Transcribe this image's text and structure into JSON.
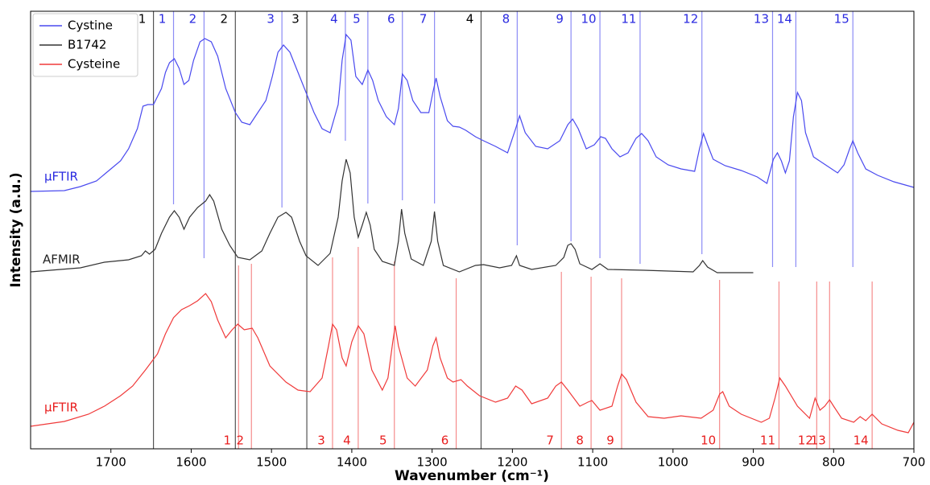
{
  "chart_data": {
    "type": "line",
    "xlabel": "Wavenumber (cm⁻¹)",
    "ylabel": "Intensity (a.u.)",
    "xlim": [
      1800,
      700
    ],
    "ylim": [
      0,
      544
    ],
    "xticks": [
      1700,
      1600,
      1500,
      1400,
      1300,
      1200,
      1100,
      1000,
      900,
      800,
      700
    ],
    "legend": "upper left",
    "series": [
      {
        "name": "Cystine",
        "color": "#4a4aef",
        "x": [
          1800,
          1758,
          1738,
          1718,
          1700,
          1688,
          1678,
          1667,
          1660,
          1654,
          1647,
          1637,
          1632,
          1627,
          1621,
          1615,
          1609,
          1603,
          1597,
          1589,
          1583,
          1575,
          1567,
          1557,
          1545,
          1537,
          1527,
          1517,
          1507,
          1499,
          1492,
          1485,
          1477,
          1467,
          1457,
          1447,
          1437,
          1427,
          1417,
          1412,
          1407,
          1401,
          1395,
          1387,
          1380,
          1374,
          1367,
          1357,
          1347,
          1342,
          1337,
          1331,
          1324,
          1314,
          1304,
          1299,
          1295,
          1290,
          1281,
          1274,
          1266,
          1258,
          1246,
          1236,
          1221,
          1206,
          1196,
          1191,
          1184,
          1171,
          1156,
          1141,
          1131,
          1125,
          1118,
          1108,
          1098,
          1090,
          1084,
          1076,
          1066,
          1056,
          1046,
          1039,
          1031,
          1021,
          1006,
          990,
          973,
          967,
          962,
          957,
          950,
          935,
          915,
          895,
          883,
          875,
          870,
          865,
          860,
          855,
          850,
          845,
          840,
          835,
          825,
          810,
          795,
          787,
          780,
          776,
          770,
          760,
          745,
          725,
          700
        ],
        "values": [
          320,
          321,
          326,
          333,
          348,
          358,
          373,
          398,
          426,
          428,
          428,
          448,
          468,
          480,
          485,
          473,
          453,
          458,
          483,
          506,
          510,
          506,
          488,
          448,
          418,
          406,
          403,
          418,
          433,
          463,
          493,
          502,
          493,
          468,
          443,
          418,
          398,
          393,
          428,
          483,
          515,
          508,
          463,
          453,
          471,
          458,
          433,
          413,
          403,
          423,
          466,
          458,
          433,
          418,
          418,
          443,
          461,
          438,
          408,
          401,
          400,
          396,
          388,
          383,
          376,
          368,
          398,
          414,
          393,
          376,
          373,
          383,
          403,
          410,
          398,
          373,
          378,
          388,
          386,
          373,
          363,
          368,
          386,
          392,
          383,
          363,
          353,
          348,
          345,
          373,
          392,
          378,
          360,
          352,
          346,
          338,
          330,
          360,
          368,
          358,
          343,
          358,
          413,
          443,
          433,
          393,
          363,
          353,
          343,
          353,
          373,
          383,
          368,
          348,
          340,
          332,
          325
        ]
      },
      {
        "name": "B1742",
        "color": "#333333",
        "x": [
          1800,
          1738,
          1708,
          1678,
          1662,
          1657,
          1652,
          1645,
          1637,
          1627,
          1621,
          1615,
          1609,
          1602,
          1592,
          1582,
          1577,
          1572,
          1562,
          1552,
          1542,
          1527,
          1512,
          1502,
          1492,
          1482,
          1475,
          1465,
          1457,
          1442,
          1427,
          1417,
          1412,
          1407,
          1402,
          1397,
          1392,
          1387,
          1382,
          1377,
          1372,
          1362,
          1347,
          1342,
          1338,
          1334,
          1326,
          1311,
          1301,
          1297,
          1293,
          1286,
          1266,
          1246,
          1236,
          1216,
          1201,
          1195,
          1191,
          1176,
          1146,
          1136,
          1131,
          1127,
          1122,
          1116,
          1101,
          1091,
          1081,
          1036,
          975,
          967,
          963,
          957,
          945,
          900
        ],
        "values": [
          220,
          225,
          232,
          235,
          240,
          246,
          242,
          248,
          268,
          288,
          296,
          288,
          273,
          288,
          300,
          308,
          316,
          308,
          273,
          253,
          238,
          235,
          246,
          268,
          288,
          294,
          288,
          258,
          240,
          228,
          243,
          288,
          333,
          360,
          343,
          288,
          263,
          278,
          294,
          278,
          248,
          233,
          228,
          258,
          298,
          268,
          236,
          228,
          258,
          295,
          258,
          228,
          220,
          228,
          229,
          225,
          228,
          240,
          228,
          223,
          228,
          238,
          253,
          255,
          248,
          230,
          223,
          230,
          223,
          222,
          220,
          228,
          234,
          226,
          219,
          219
        ]
      },
      {
        "name": "Cysteine",
        "color": "#f03a3a",
        "x": [
          1800,
          1758,
          1728,
          1708,
          1688,
          1673,
          1657,
          1642,
          1632,
          1622,
          1612,
          1602,
          1592,
          1582,
          1575,
          1567,
          1557,
          1549,
          1542,
          1534,
          1524,
          1517,
          1502,
          1482,
          1467,
          1452,
          1437,
          1429,
          1424,
          1419,
          1412,
          1407,
          1400,
          1392,
          1385,
          1375,
          1362,
          1355,
          1349,
          1346,
          1342,
          1331,
          1321,
          1306,
          1299,
          1295,
          1290,
          1281,
          1274,
          1264,
          1256,
          1241,
          1221,
          1206,
          1196,
          1188,
          1176,
          1156,
          1146,
          1139,
          1131,
          1116,
          1106,
          1101,
          1091,
          1076,
          1069,
          1064,
          1058,
          1046,
          1031,
          1011,
          990,
          965,
          950,
          942,
          938,
          930,
          915,
          890,
          880,
          873,
          867,
          860,
          845,
          830,
          823,
          817,
          811,
          805,
          800,
          790,
          775,
          767,
          760,
          752,
          740,
          720,
          707,
          700
        ],
        "values": [
          28,
          34,
          43,
          53,
          66,
          78,
          98,
          118,
          143,
          163,
          173,
          178,
          184,
          193,
          183,
          160,
          138,
          148,
          155,
          148,
          150,
          138,
          103,
          83,
          73,
          71,
          88,
          128,
          155,
          148,
          113,
          103,
          133,
          153,
          143,
          98,
          73,
          88,
          133,
          153,
          128,
          88,
          78,
          98,
          128,
          138,
          113,
          88,
          83,
          86,
          78,
          66,
          58,
          63,
          78,
          73,
          56,
          63,
          78,
          83,
          73,
          53,
          58,
          60,
          48,
          53,
          78,
          93,
          86,
          58,
          40,
          38,
          41,
          38,
          48,
          68,
          71,
          53,
          43,
          33,
          38,
          63,
          88,
          78,
          53,
          38,
          63,
          48,
          53,
          61,
          53,
          38,
          33,
          40,
          35,
          43,
          31,
          23,
          20,
          33
        ]
      }
    ],
    "markers": [
      {
        "color": "#555555",
        "label_position": "top",
        "labels": [
          "1",
          "2",
          "3",
          "4"
        ],
        "x": [
          1647,
          1545,
          1456,
          1239
        ],
        "ymin": [
          0,
          0,
          0,
          0
        ],
        "ymax": [
          544,
          544,
          544,
          544
        ]
      },
      {
        "color": "#8c8cf5",
        "label_color": "#2a2ae0",
        "label_position": "top",
        "labels": [
          "1",
          "2",
          "3",
          "4",
          "5",
          "6",
          "7",
          "8",
          "9",
          "10",
          "11",
          "12",
          "13",
          "14",
          "15"
        ],
        "x": [
          1622,
          1584,
          1487,
          1408,
          1380,
          1337,
          1297,
          1194,
          1127,
          1091,
          1041,
          964,
          876,
          847,
          776
        ],
        "ymin": [
          304,
          237,
          300,
          383,
          305,
          309,
          305,
          253,
          258,
          237,
          230,
          242,
          226,
          226,
          226
        ],
        "ymax": [
          544,
          544,
          544,
          544,
          544,
          544,
          544,
          544,
          544,
          544,
          544,
          544,
          544,
          544,
          544
        ]
      },
      {
        "color": "#f58c8c",
        "label_color": "#e81e1e",
        "label_position": "bottom",
        "labels": [
          "1",
          "2",
          "3",
          "4",
          "5",
          "6",
          "7",
          "8",
          "9",
          "10",
          "11",
          "12",
          "13",
          "14"
        ],
        "x": [
          1541,
          1525,
          1424,
          1392,
          1347,
          1270,
          1139,
          1102,
          1064,
          942,
          868,
          821,
          805,
          752
        ],
        "ymin": [
          0,
          0,
          0,
          0,
          0,
          0,
          0,
          0,
          0,
          0,
          0,
          0,
          0,
          0
        ],
        "ymax": [
          228,
          230,
          238,
          251,
          233,
          212,
          220,
          214,
          212,
          210,
          208,
          208,
          208,
          208
        ]
      }
    ],
    "annotations": [
      {
        "text": "µFTIR",
        "color": "#2a2ae0"
      },
      {
        "text": "AFMIR",
        "color": "#222222"
      },
      {
        "text": "µFTIR",
        "color": "#e81e1e"
      }
    ]
  }
}
